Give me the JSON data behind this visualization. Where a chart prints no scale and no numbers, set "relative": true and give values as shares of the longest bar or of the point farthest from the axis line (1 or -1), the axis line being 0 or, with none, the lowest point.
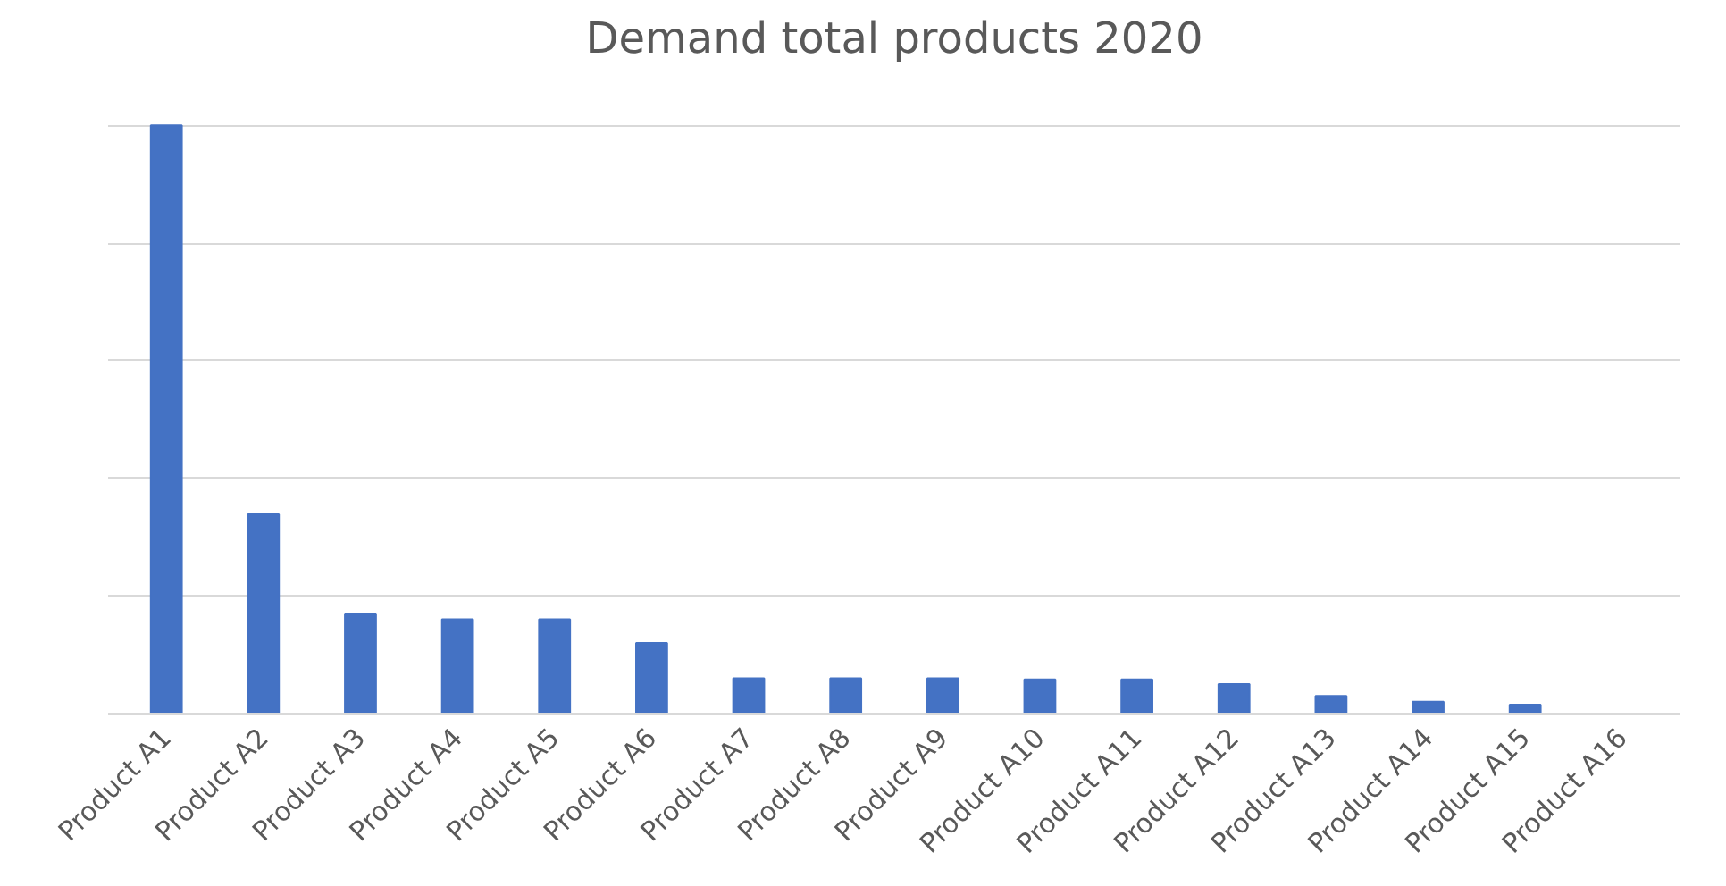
{
  "chart_data": {
    "type": "bar",
    "title": "Demand total products 2020",
    "categories": [
      "Product A1",
      "Product A2",
      "Product A3",
      "Product A4",
      "Product A5",
      "Product A6",
      "Product A7",
      "Product A8",
      "Product A9",
      "Product A10",
      "Product A11",
      "Product A12",
      "Product A13",
      "Product A14",
      "Product A15",
      "Product A16"
    ],
    "values": [
      1,
      0.34,
      0.17,
      0.16,
      0.16,
      0.12,
      0.06,
      0.06,
      0.06,
      0.058,
      0.058,
      0.05,
      0.03,
      0.02,
      0.015,
      0
    ],
    "color": "#4472c4",
    "relative": true,
    "grid": "y",
    "tick_labels": "x"
  }
}
